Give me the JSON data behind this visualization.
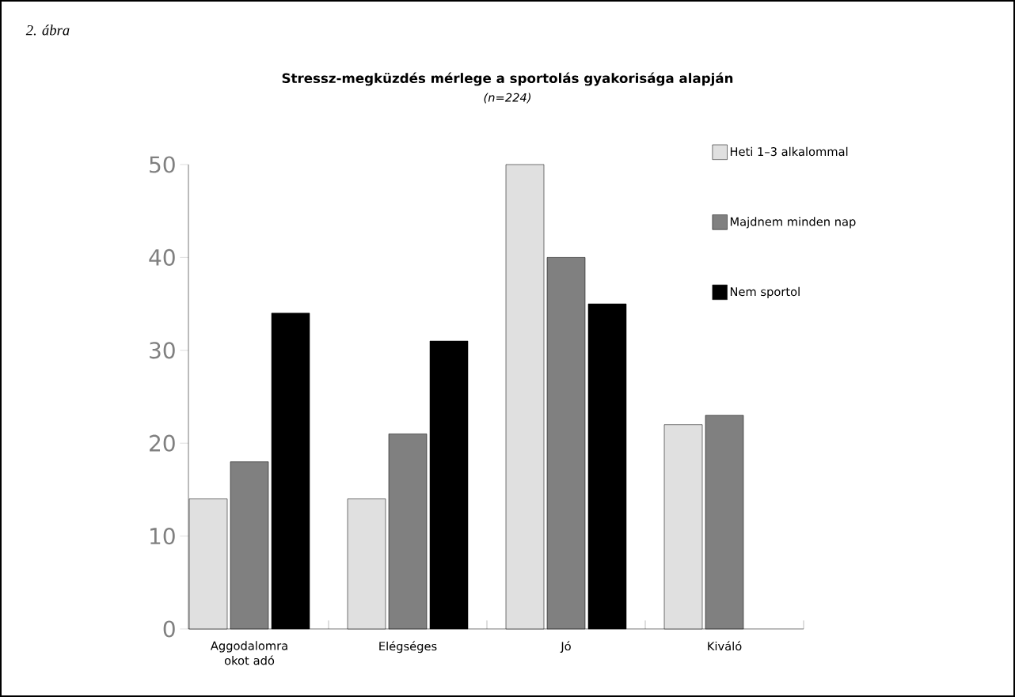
{
  "chart_data": {
    "type": "bar",
    "title": "Stressz-megküzdés mérlege a sportolás gyakorisága alapján",
    "subtitle": "(n=224)",
    "annotations": [
      "2. ábra"
    ],
    "categories": [
      "Aggodalomra okot adó",
      "Elégséges",
      "Jó",
      "Kiváló"
    ],
    "series": [
      {
        "name": "Heti 1–3 alkalommal",
        "color": "#e0e0e0",
        "values": [
          14,
          14,
          50,
          22
        ]
      },
      {
        "name": "Majdnem minden nap",
        "color": "#808080",
        "values": [
          18,
          21,
          40,
          23
        ]
      },
      {
        "name": "Nem sportol",
        "color": "#000000",
        "values": [
          34,
          31,
          35,
          null
        ]
      }
    ],
    "ylim": [
      0,
      50
    ],
    "yticks": [
      0,
      10,
      20,
      30,
      40,
      50
    ],
    "legend": "top right"
  }
}
